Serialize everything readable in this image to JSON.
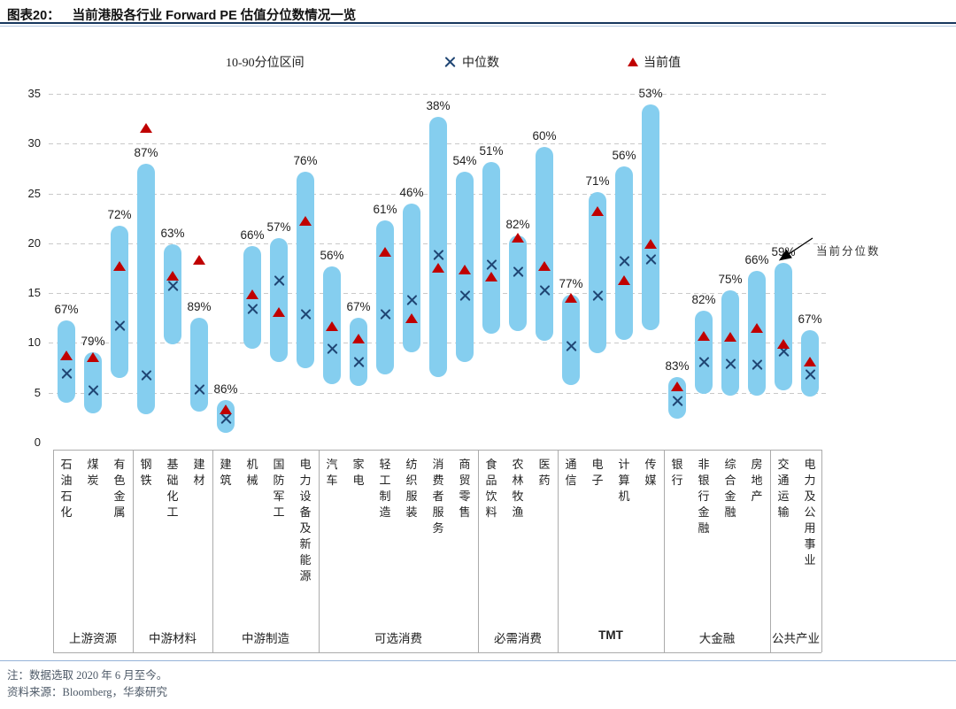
{
  "figure": {
    "label": "图表20：",
    "title": "当前港股各行业 Forward PE 估值分位数情况一览"
  },
  "legend": {
    "range_label": "10-90分位区间",
    "median_label": "中位数",
    "current_label": "当前值"
  },
  "annotation": {
    "text": "当前分位数",
    "target_industry": "交通运输"
  },
  "notes": {
    "note": "注：数据选取 2020 年 6 月至今。",
    "source": "资料来源：Bloomberg，华泰研究"
  },
  "colors": {
    "bar": "#85CEEF",
    "median_marker": "#1F4573",
    "current_marker": "#C00000",
    "grid": "#C9C9C9",
    "title_rule": "#17375E",
    "footer_rule": "#95B3D7",
    "table_border": "#ABABAB"
  },
  "chart_data": {
    "type": "bar",
    "variant": "floating 10-90 percentile range bars with median × and current-value ▲ markers",
    "title": "当前港股各行业 Forward PE 估值分位数情况一览",
    "xlabel": "",
    "ylabel": "",
    "ylim": [
      0,
      35
    ],
    "yticks": [
      0,
      5,
      10,
      15,
      20,
      25,
      30,
      35
    ],
    "grid": "horizontal dashed",
    "legend_position": "top",
    "groups": [
      {
        "name": "上游资源",
        "count": 3
      },
      {
        "name": "中游材料",
        "count": 3
      },
      {
        "name": "中游制造",
        "count": 4
      },
      {
        "name": "可选消费",
        "count": 6
      },
      {
        "name": "必需消费",
        "count": 3
      },
      {
        "name": "TMT",
        "count": 4
      },
      {
        "name": "大金融",
        "count": 4
      },
      {
        "name": "公共产业",
        "count": 2
      }
    ],
    "industries": [
      {
        "name": "石油石化",
        "group": "上游资源",
        "p10": 4.0,
        "p90": 12.3,
        "median": 6.9,
        "current": 8.7,
        "percentile": "67%"
      },
      {
        "name": "煤炭",
        "group": "上游资源",
        "p10": 2.9,
        "p90": 9.1,
        "median": 5.2,
        "current": 8.5,
        "percentile": "79%"
      },
      {
        "name": "有色金属",
        "group": "上游资源",
        "p10": 6.5,
        "p90": 21.8,
        "median": 11.7,
        "current": 17.7,
        "percentile": "72%"
      },
      {
        "name": "钢铁",
        "group": "中游材料",
        "p10": 2.8,
        "p90": 28.0,
        "median": 6.7,
        "current": 31.5,
        "percentile": "87%"
      },
      {
        "name": "基础化工",
        "group": "中游材料",
        "p10": 9.9,
        "p90": 19.9,
        "median": 15.7,
        "current": 16.7,
        "percentile": "63%"
      },
      {
        "name": "建材",
        "group": "中游材料",
        "p10": 3.1,
        "p90": 12.5,
        "median": 5.3,
        "current": 18.3,
        "percentile": "89%"
      },
      {
        "name": "建筑",
        "group": "中游制造",
        "p10": 1.0,
        "p90": 4.3,
        "median": 2.4,
        "current": 3.3,
        "percentile": "86%"
      },
      {
        "name": "机械",
        "group": "中游制造",
        "p10": 9.4,
        "p90": 19.7,
        "median": 13.4,
        "current": 14.8,
        "percentile": "66%"
      },
      {
        "name": "国防军工",
        "group": "中游制造",
        "p10": 8.1,
        "p90": 20.5,
        "median": 16.2,
        "current": 13.1,
        "percentile": "57%"
      },
      {
        "name": "电力设备及新能源",
        "group": "中游制造",
        "p10": 7.5,
        "p90": 27.2,
        "median": 12.9,
        "current": 22.2,
        "percentile": "76%"
      },
      {
        "name": "汽车",
        "group": "可选消费",
        "p10": 5.9,
        "p90": 17.7,
        "median": 9.4,
        "current": 11.6,
        "percentile": "56%"
      },
      {
        "name": "家电",
        "group": "可选消费",
        "p10": 5.7,
        "p90": 12.5,
        "median": 8.1,
        "current": 10.4,
        "percentile": "67%"
      },
      {
        "name": "轻工制造",
        "group": "可选消费",
        "p10": 6.8,
        "p90": 22.3,
        "median": 12.9,
        "current": 19.1,
        "percentile": "61%"
      },
      {
        "name": "纺织服装",
        "group": "可选消费",
        "p10": 9.1,
        "p90": 24.0,
        "median": 14.3,
        "current": 12.4,
        "percentile": "46%"
      },
      {
        "name": "消费者服务",
        "group": "可选消费",
        "p10": 6.6,
        "p90": 32.7,
        "median": 18.8,
        "current": 17.5,
        "percentile": "38%"
      },
      {
        "name": "商贸零售",
        "group": "可选消费",
        "p10": 8.1,
        "p90": 27.2,
        "median": 14.7,
        "current": 17.3,
        "percentile": "54%"
      },
      {
        "name": "食品饮料",
        "group": "必需消费",
        "p10": 10.9,
        "p90": 28.2,
        "median": 17.8,
        "current": 16.6,
        "percentile": "51%"
      },
      {
        "name": "农林牧渔",
        "group": "必需消费",
        "p10": 11.2,
        "p90": 20.8,
        "median": 17.1,
        "current": 20.5,
        "percentile": "82%"
      },
      {
        "name": "医药",
        "group": "必需消费",
        "p10": 10.2,
        "p90": 29.7,
        "median": 15.3,
        "current": 17.7,
        "percentile": "60%"
      },
      {
        "name": "通信",
        "group": "TMT",
        "p10": 5.8,
        "p90": 14.8,
        "median": 9.7,
        "current": 14.5,
        "percentile": "77%"
      },
      {
        "name": "电子",
        "group": "TMT",
        "p10": 9.0,
        "p90": 25.1,
        "median": 14.7,
        "current": 23.2,
        "percentile": "71%"
      },
      {
        "name": "计算机",
        "group": "TMT",
        "p10": 10.3,
        "p90": 27.7,
        "median": 18.2,
        "current": 16.3,
        "percentile": "56%"
      },
      {
        "name": "传媒",
        "group": "TMT",
        "p10": 11.3,
        "p90": 33.9,
        "median": 18.4,
        "current": 19.9,
        "percentile": "53%"
      },
      {
        "name": "银行",
        "group": "大金融",
        "p10": 2.4,
        "p90": 6.6,
        "median": 4.2,
        "current": 5.6,
        "percentile": "83%"
      },
      {
        "name": "非银行金融",
        "group": "大金融",
        "p10": 4.9,
        "p90": 13.2,
        "median": 8.1,
        "current": 10.7,
        "percentile": "82%"
      },
      {
        "name": "综合金融",
        "group": "大金融",
        "p10": 4.7,
        "p90": 15.3,
        "median": 7.9,
        "current": 10.6,
        "percentile": "75%"
      },
      {
        "name": "房地产",
        "group": "大金融",
        "p10": 4.7,
        "p90": 17.2,
        "median": 7.8,
        "current": 11.5,
        "percentile": "66%"
      },
      {
        "name": "交通运输",
        "group": "公共产业",
        "p10": 5.2,
        "p90": 18.0,
        "median": 9.1,
        "current": 9.9,
        "percentile": "59%"
      },
      {
        "name": "电力及公用事业",
        "group": "公共产业",
        "p10": 4.6,
        "p90": 11.3,
        "median": 6.8,
        "current": 8.1,
        "percentile": "67%"
      }
    ]
  }
}
